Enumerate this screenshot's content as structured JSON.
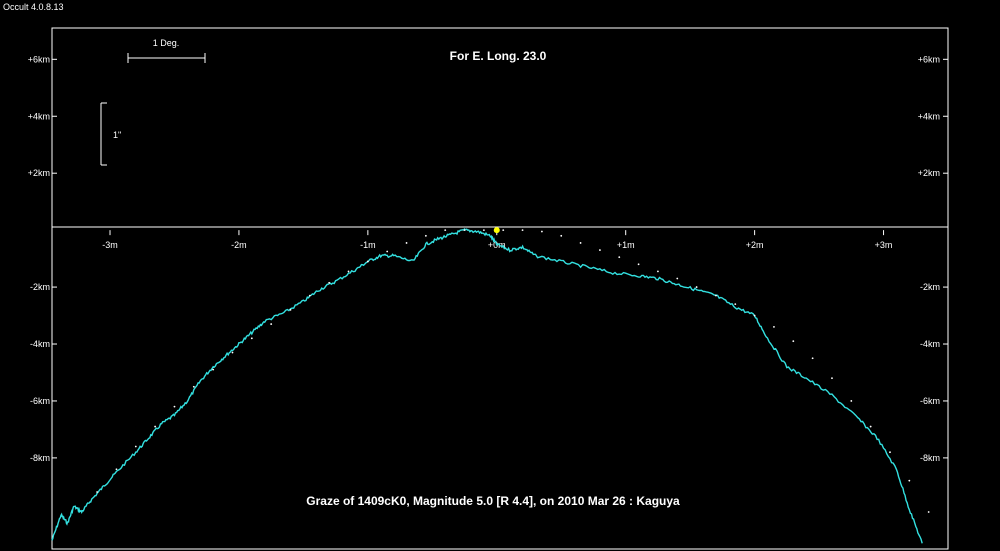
{
  "app": {
    "version": "Occult 4.0.8.13"
  },
  "chart_data": {
    "type": "line",
    "title": "For E. Long. 23.0",
    "caption": "Graze of  1409cK0,  Magnitude 5.0 [R 4.4],  on 2010 Mar 26  :  Kaguya",
    "x_unit": "minutes",
    "y_unit": "km",
    "xlim": [
      -3.45,
      3.5
    ],
    "ylim": [
      -11.2,
      7.1
    ],
    "x_ticks": [
      {
        "v": -3,
        "label": "-3m"
      },
      {
        "v": -2,
        "label": "-2m"
      },
      {
        "v": -1,
        "label": "-1m"
      },
      {
        "v": 0,
        "label": "+0m"
      },
      {
        "v": 1,
        "label": "+1m"
      },
      {
        "v": 2,
        "label": "+2m"
      },
      {
        "v": 3,
        "label": "+3m"
      }
    ],
    "y_ticks": [
      {
        "v": 6,
        "label": "+6km"
      },
      {
        "v": 4,
        "label": "+4km"
      },
      {
        "v": 2,
        "label": "+2km"
      },
      {
        "v": -2,
        "label": "-2km"
      },
      {
        "v": -4,
        "label": "-4km"
      },
      {
        "v": -6,
        "label": "-6km"
      },
      {
        "v": -8,
        "label": "-8km"
      }
    ],
    "scale_bars": {
      "horizontal_label": "1 Deg.",
      "vertical_label": "1\""
    },
    "star_marker": {
      "x": 0.0,
      "y": 0.0,
      "color": "#ffff00"
    },
    "series": [
      {
        "style": "profile",
        "color": "#33e0e0",
        "x": [
          -3.45,
          -3.38,
          -3.33,
          -3.28,
          -3.22,
          -3.15,
          -3.05,
          -2.95,
          -2.8,
          -2.7,
          -2.6,
          -2.5,
          -2.4,
          -2.3,
          -2.2,
          -2.1,
          -2.0,
          -1.9,
          -1.8,
          -1.65,
          -1.5,
          -1.38,
          -1.25,
          -1.1,
          -1.0,
          -0.9,
          -0.8,
          -0.65,
          -0.55,
          -0.45,
          -0.35,
          -0.25,
          -0.15,
          -0.05,
          0.0,
          0.1,
          0.2,
          0.3,
          0.5,
          0.7,
          0.9,
          1.1,
          1.25,
          1.4,
          1.55,
          1.7,
          1.85,
          2.0,
          2.1,
          2.25,
          2.4,
          2.6,
          2.8,
          2.95,
          3.1,
          3.2,
          3.3
        ],
        "y": [
          -10.9,
          -10.0,
          -10.3,
          -9.7,
          -9.9,
          -9.5,
          -9.0,
          -8.5,
          -7.8,
          -7.3,
          -6.8,
          -6.5,
          -6.0,
          -5.3,
          -4.8,
          -4.4,
          -4.0,
          -3.6,
          -3.2,
          -2.9,
          -2.5,
          -2.1,
          -1.8,
          -1.4,
          -1.1,
          -0.9,
          -0.9,
          -1.1,
          -0.5,
          -0.3,
          -0.15,
          0.0,
          -0.05,
          -0.2,
          -0.5,
          -0.7,
          -0.6,
          -0.9,
          -1.1,
          -1.3,
          -1.5,
          -1.6,
          -1.7,
          -1.9,
          -2.1,
          -2.3,
          -2.7,
          -3.0,
          -3.8,
          -4.8,
          -5.2,
          -5.8,
          -6.6,
          -7.3,
          -8.4,
          -9.8,
          -11.0
        ]
      },
      {
        "style": "limb_dots",
        "color": "#ffffff",
        "x": [
          -3.1,
          -2.95,
          -2.8,
          -2.65,
          -2.5,
          -2.35,
          -2.2,
          -2.05,
          -1.9,
          -1.75,
          -1.6,
          -1.45,
          -1.3,
          -1.15,
          -1.0,
          -0.85,
          -0.7,
          -0.55,
          -0.4,
          -0.25,
          -0.1,
          0.05,
          0.2,
          0.35,
          0.5,
          0.65,
          0.8,
          0.95,
          1.1,
          1.25,
          1.4,
          1.55,
          1.7,
          1.85,
          2.0,
          2.15,
          2.3,
          2.45,
          2.6,
          2.75,
          2.9,
          3.05,
          3.2,
          3.35
        ],
        "y": [
          -9.2,
          -8.4,
          -7.6,
          -6.9,
          -6.2,
          -5.5,
          -4.9,
          -4.3,
          -3.8,
          -3.3,
          -2.8,
          -2.3,
          -1.85,
          -1.45,
          -1.1,
          -0.75,
          -0.45,
          -0.2,
          0.0,
          0.0,
          0.0,
          0.0,
          0.0,
          -0.05,
          -0.2,
          -0.45,
          -0.7,
          -0.95,
          -1.2,
          -1.45,
          -1.7,
          -2.0,
          -2.3,
          -2.6,
          -3.0,
          -3.4,
          -3.9,
          -4.5,
          -5.2,
          -6.0,
          -6.9,
          -7.8,
          -8.8,
          -9.9
        ]
      }
    ]
  }
}
